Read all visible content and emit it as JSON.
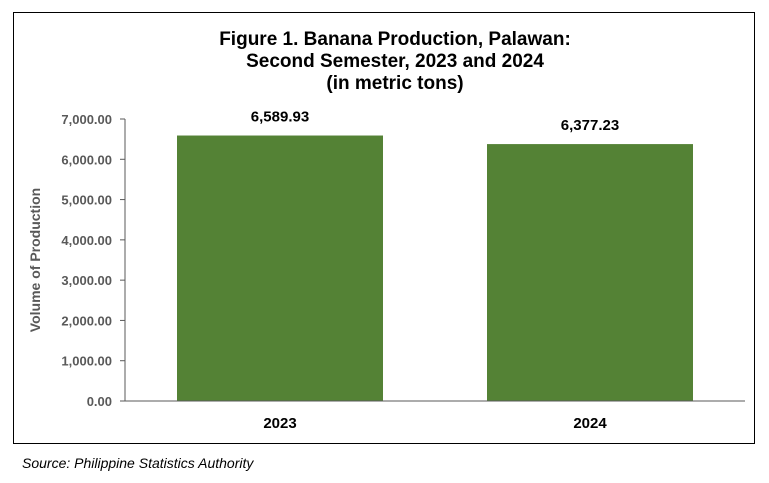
{
  "chart_data": {
    "type": "bar",
    "title": [
      "Figure 1. Banana Production, Palawan:",
      "Second Semester, 2023 and 2024",
      "(in metric tons)"
    ],
    "xlabel": "",
    "ylabel": "Volume of Production",
    "categories": [
      "2023",
      "2024"
    ],
    "values": [
      6589.93,
      6377.23
    ],
    "value_labels": [
      "6,589.93",
      "6,377.23"
    ],
    "ylim": [
      0,
      7000
    ],
    "yticks": [
      0,
      1000,
      2000,
      3000,
      4000,
      5000,
      6000,
      7000
    ],
    "ytick_labels": [
      "0.00",
      "1,000.00",
      "2,000.00",
      "3,000.00",
      "4,000.00",
      "5,000.00",
      "6,000.00",
      "7,000.00"
    ],
    "grid": false,
    "legend": "none",
    "bar_color": "#548235"
  },
  "source": "Source: Philippine Statistics Authority"
}
